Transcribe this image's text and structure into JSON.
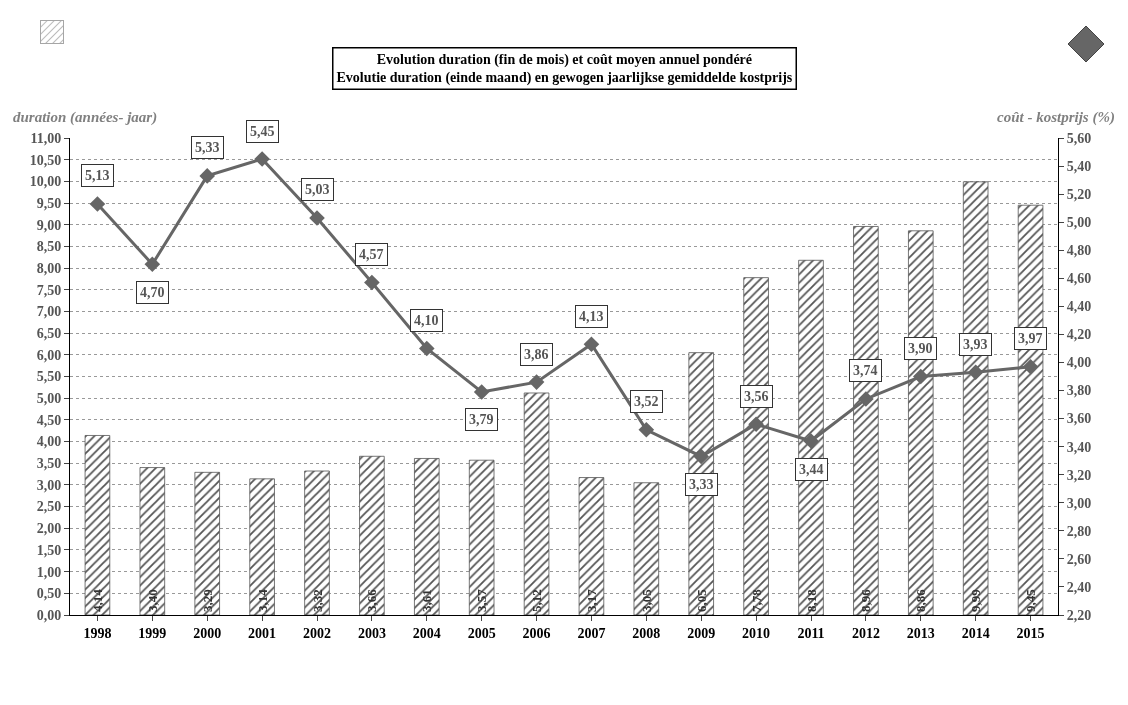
{
  "chart_data": {
    "type": "bar",
    "title": "Evolution duration (fin de mois) et coût moyen annuel pondéré\nEvolutie duration (einde maand) en gewogen jaarlijkse gemiddelde kostprijs",
    "ylabel": "duration (années- jaar)",
    "y2label": "coût - kostprijs (%)",
    "categories": [
      "1998",
      "1999",
      "2000",
      "2001",
      "2002",
      "2003",
      "2004",
      "2005",
      "2006",
      "2007",
      "2008",
      "2009",
      "2010",
      "2011",
      "2012",
      "2013",
      "2014",
      "2015"
    ],
    "series": [
      {
        "color": "#555555",
        "values": [
          4.14,
          3.4,
          3.29,
          3.14,
          3.32,
          3.66,
          3.61,
          3.57,
          5.12,
          3.17,
          3.05,
          6.05,
          7.78,
          8.18,
          8.96,
          8.86,
          9.99,
          9.45
        ],
        "value_labels": [
          "4,14",
          "3,40",
          "3,29",
          "3,14",
          "3,32",
          "3,66",
          "3,61",
          "3,57",
          "5,12",
          "3,17",
          "3,05",
          "6,05",
          "7,78",
          "8,18",
          "8,96",
          "8,86",
          "9,99",
          "9,45"
        ]
      },
      {
        "type": "line",
        "axis": "y2",
        "color": "#666666",
        "marker": "diamond",
        "line_style": "solid",
        "values": [
          5.13,
          4.7,
          5.33,
          5.45,
          5.03,
          4.57,
          4.1,
          3.79,
          3.86,
          4.13,
          3.52,
          3.33,
          3.56,
          3.44,
          3.74,
          3.9,
          3.93,
          3.97
        ],
        "value_labels": [
          "5,13",
          "4,70",
          "5,33",
          "5,45",
          "5,03",
          "4,57",
          "4,10",
          "3,79",
          "3,86",
          "4,13",
          "3,52",
          "3,33",
          "3,56",
          "3,44",
          "3,74",
          "3,90",
          "3,93",
          "3,97"
        ]
      }
    ],
    "ylim": [
      0,
      11
    ],
    "yticks": [
      {
        "value": 0,
        "label": "0,00"
      },
      {
        "value": 0.5,
        "label": "0,50"
      },
      {
        "value": 1,
        "label": "1,00"
      },
      {
        "value": 1.5,
        "label": "1,50"
      },
      {
        "value": 2,
        "label": "2,00"
      },
      {
        "value": 2.5,
        "label": "2,50"
      },
      {
        "value": 3,
        "label": "3,00"
      },
      {
        "value": 3.5,
        "label": "3,50"
      },
      {
        "value": 4,
        "label": "4,00"
      },
      {
        "value": 4.5,
        "label": "4,50"
      },
      {
        "value": 5,
        "label": "5,00"
      },
      {
        "value": 5.5,
        "label": "5,50"
      },
      {
        "value": 6,
        "label": "6,00"
      },
      {
        "value": 6.5,
        "label": "6,50"
      },
      {
        "value": 7,
        "label": "7,00"
      },
      {
        "value": 7.5,
        "label": "7,50"
      },
      {
        "value": 8,
        "label": "8,00"
      },
      {
        "value": 8.5,
        "label": "8,50"
      },
      {
        "value": 9,
        "label": "9,00"
      },
      {
        "value": 9.5,
        "label": "9,50"
      },
      {
        "value": 10,
        "label": "10,00"
      },
      {
        "value": 10.5,
        "label": "10,50"
      },
      {
        "value": 11,
        "label": "11,00"
      }
    ],
    "y2lim": [
      2.2,
      5.6
    ],
    "y2ticks": [
      {
        "value": 2.2,
        "label": "2,20"
      },
      {
        "value": 2.4,
        "label": "2,40"
      },
      {
        "value": 2.6,
        "label": "2,60"
      },
      {
        "value": 2.8,
        "label": "2,80"
      },
      {
        "value": 3,
        "label": "3,00"
      },
      {
        "value": 3.2,
        "label": "3,20"
      },
      {
        "value": 3.4,
        "label": "3,40"
      },
      {
        "value": 3.6,
        "label": "3,60"
      },
      {
        "value": 3.8,
        "label": "3,80"
      },
      {
        "value": 4,
        "label": "4,00"
      },
      {
        "value": 4.2,
        "label": "4,20"
      },
      {
        "value": 4.4,
        "label": "4,40"
      },
      {
        "value": 4.6,
        "label": "4,60"
      },
      {
        "value": 4.8,
        "label": "4,80"
      },
      {
        "value": 5,
        "label": "5,00"
      },
      {
        "value": 5.2,
        "label": "5,20"
      },
      {
        "value": 5.4,
        "label": "5,40"
      },
      {
        "value": 5.6,
        "label": "5,60"
      }
    ],
    "grid": "y"
  }
}
